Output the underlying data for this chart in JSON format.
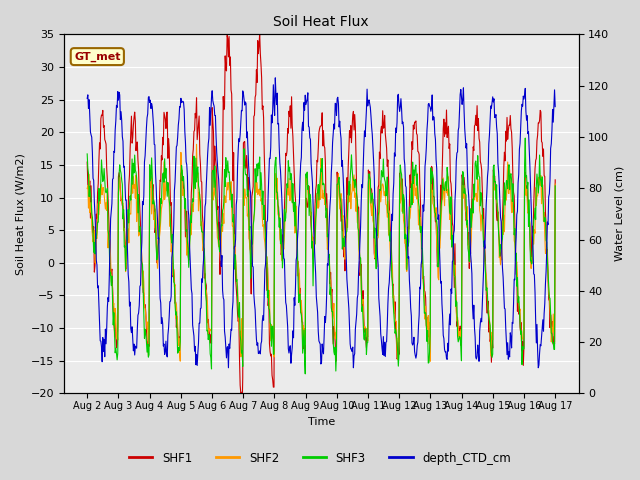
{
  "title": "Soil Heat Flux",
  "ylabel_left": "Soil Heat Flux (W/m2)",
  "ylabel_right": "Water Level (cm)",
  "xlabel": "Time",
  "ylim_left": [
    -20,
    35
  ],
  "ylim_right": [
    0,
    140
  ],
  "yticks_left": [
    -20,
    -15,
    -10,
    -5,
    0,
    5,
    10,
    15,
    20,
    25,
    30,
    35
  ],
  "yticks_right": [
    0,
    20,
    40,
    60,
    80,
    100,
    120,
    140
  ],
  "xtick_labels": [
    "Aug 2",
    "Aug 3",
    "Aug 4",
    "Aug 5",
    "Aug 6",
    "Aug 7",
    "Aug 8",
    "Aug 9",
    "Aug 10",
    "Aug 11",
    "Aug 12",
    "Aug 13",
    "Aug 14",
    "Aug 15",
    "Aug 16",
    "Aug 17"
  ],
  "legend_labels": [
    "SHF1",
    "SHF2",
    "SHF3",
    "depth_CTD_cm"
  ],
  "line_colors": [
    "#cc0000",
    "#ff9900",
    "#00cc00",
    "#0000cc"
  ],
  "annotation_text": "GT_met",
  "annotation_facecolor": "#ffffcc",
  "annotation_edgecolor": "#996600",
  "annotation_textcolor": "#990000",
  "background_color": "#d8d8d8",
  "plot_area_color": "#ebebeb",
  "grid_color": "#ffffff",
  "n_points": 720
}
